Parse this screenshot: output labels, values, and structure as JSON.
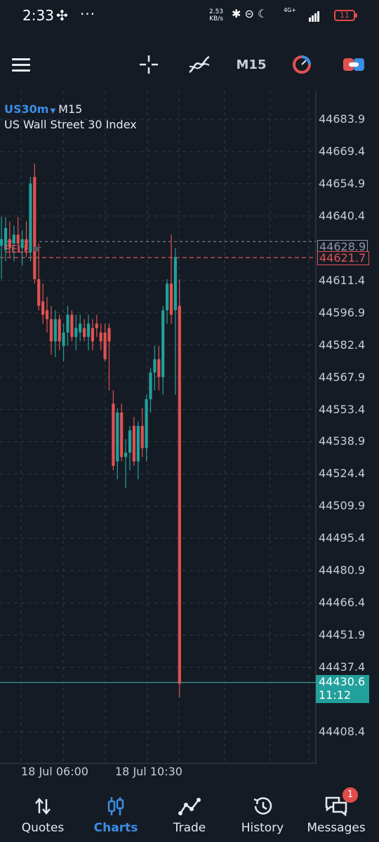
{
  "status_bar": {
    "time": "2:33",
    "speed_value": "2.53",
    "speed_unit": "KB/s",
    "network": "4G+",
    "battery": "11"
  },
  "toolbar": {
    "timeframe": "M15",
    "icons": [
      "menu-icon",
      "crosshair-icon",
      "indicators-icon",
      "timeframe-button",
      "objects-icon",
      "trade-toggle-icon"
    ]
  },
  "chart": {
    "symbol": "US30m",
    "timeframe": "M15",
    "description": "US Wall Street 30 Index",
    "price_axis": [
      "44683.9",
      "44669.4",
      "44654.9",
      "44640.4",
      "44611.4",
      "44596.9",
      "44582.4",
      "44567.9",
      "44553.4",
      "44538.9",
      "44524.4",
      "44509.9",
      "44495.4",
      "44480.9",
      "44466.4",
      "44451.9",
      "44437.4",
      "44408.4"
    ],
    "current_price": "44628.9",
    "sell_price": "44621.7",
    "sell_label": "SELL",
    "last_price": "44430.6",
    "last_time": "11:12",
    "time_axis": [
      "18 Jul 06:00",
      "18 Jul 10:30"
    ],
    "colors": {
      "bull": "#22a09b",
      "bear": "#e05252",
      "grid": "#2e3848",
      "accent": "#3a8ee6"
    }
  },
  "chart_data": {
    "type": "candlestick",
    "ylim": [
      44400,
      44690
    ],
    "candles": [
      {
        "o": 44627,
        "h": 44640,
        "l": 44612,
        "c": 44630
      },
      {
        "o": 44625,
        "h": 44640,
        "l": 44620,
        "c": 44635
      },
      {
        "o": 44630,
        "h": 44638,
        "l": 44622,
        "c": 44626
      },
      {
        "o": 44628,
        "h": 44636,
        "l": 44620,
        "c": 44632
      },
      {
        "o": 44632,
        "h": 44640,
        "l": 44624,
        "c": 44628
      },
      {
        "o": 44626,
        "h": 44634,
        "l": 44618,
        "c": 44630
      },
      {
        "o": 44630,
        "h": 44638,
        "l": 44622,
        "c": 44625
      },
      {
        "o": 44624,
        "h": 44658,
        "l": 44620,
        "c": 44655
      },
      {
        "o": 44658,
        "h": 44664,
        "l": 44610,
        "c": 44612
      },
      {
        "o": 44612,
        "h": 44628,
        "l": 44598,
        "c": 44600
      },
      {
        "o": 44602,
        "h": 44610,
        "l": 44592,
        "c": 44596
      },
      {
        "o": 44598,
        "h": 44604,
        "l": 44588,
        "c": 44594
      },
      {
        "o": 44594,
        "h": 44600,
        "l": 44578,
        "c": 44584
      },
      {
        "o": 44584,
        "h": 44598,
        "l": 44577,
        "c": 44594
      },
      {
        "o": 44594,
        "h": 44596,
        "l": 44580,
        "c": 44584
      },
      {
        "o": 44582,
        "h": 44592,
        "l": 44575,
        "c": 44588
      },
      {
        "o": 44588,
        "h": 44600,
        "l": 44582,
        "c": 44596
      },
      {
        "o": 44596,
        "h": 44598,
        "l": 44584,
        "c": 44586
      },
      {
        "o": 44586,
        "h": 44596,
        "l": 44580,
        "c": 44590
      },
      {
        "o": 44588,
        "h": 44596,
        "l": 44584,
        "c": 44592
      },
      {
        "o": 44590,
        "h": 44594,
        "l": 44584,
        "c": 44586
      },
      {
        "o": 44586,
        "h": 44596,
        "l": 44580,
        "c": 44592
      },
      {
        "o": 44590,
        "h": 44594,
        "l": 44580,
        "c": 44584
      },
      {
        "o": 44592,
        "h": 44596,
        "l": 44586,
        "c": 44590
      },
      {
        "o": 44588,
        "h": 44592,
        "l": 44580,
        "c": 44584
      },
      {
        "o": 44588,
        "h": 44592,
        "l": 44575,
        "c": 44576
      },
      {
        "o": 44590,
        "h": 44592,
        "l": 44562,
        "c": 44584
      },
      {
        "o": 44556,
        "h": 44562,
        "l": 44526,
        "c": 44528
      },
      {
        "o": 44530,
        "h": 44554,
        "l": 44522,
        "c": 44552
      },
      {
        "o": 44552,
        "h": 44556,
        "l": 44530,
        "c": 44532
      },
      {
        "o": 44532,
        "h": 44540,
        "l": 44518,
        "c": 44534
      },
      {
        "o": 44534,
        "h": 44546,
        "l": 44526,
        "c": 44544
      },
      {
        "o": 44546,
        "h": 44550,
        "l": 44528,
        "c": 44530
      },
      {
        "o": 44530,
        "h": 44548,
        "l": 44522,
        "c": 44546
      },
      {
        "o": 44546,
        "h": 44554,
        "l": 44532,
        "c": 44536
      },
      {
        "o": 44536,
        "h": 44560,
        "l": 44530,
        "c": 44558
      },
      {
        "o": 44558,
        "h": 44572,
        "l": 44552,
        "c": 44570
      },
      {
        "o": 44570,
        "h": 44582,
        "l": 44562,
        "c": 44576
      },
      {
        "o": 44576,
        "h": 44582,
        "l": 44562,
        "c": 44568
      },
      {
        "o": 44568,
        "h": 44600,
        "l": 44560,
        "c": 44598
      },
      {
        "o": 44598,
        "h": 44612,
        "l": 44592,
        "c": 44610
      },
      {
        "o": 44610,
        "h": 44632,
        "l": 44592,
        "c": 44596
      },
      {
        "o": 44598,
        "h": 44626,
        "l": 44560,
        "c": 44622
      },
      {
        "o": 44600,
        "h": 44612,
        "l": 44424,
        "c": 44430
      }
    ]
  },
  "bottom_nav": {
    "items": [
      {
        "label": "Quotes",
        "icon": "sort-arrows-icon"
      },
      {
        "label": "Charts",
        "icon": "candles-icon"
      },
      {
        "label": "Trade",
        "icon": "trend-icon"
      },
      {
        "label": "History",
        "icon": "history-icon"
      },
      {
        "label": "Messages",
        "icon": "messages-icon"
      }
    ],
    "badge": "1"
  }
}
